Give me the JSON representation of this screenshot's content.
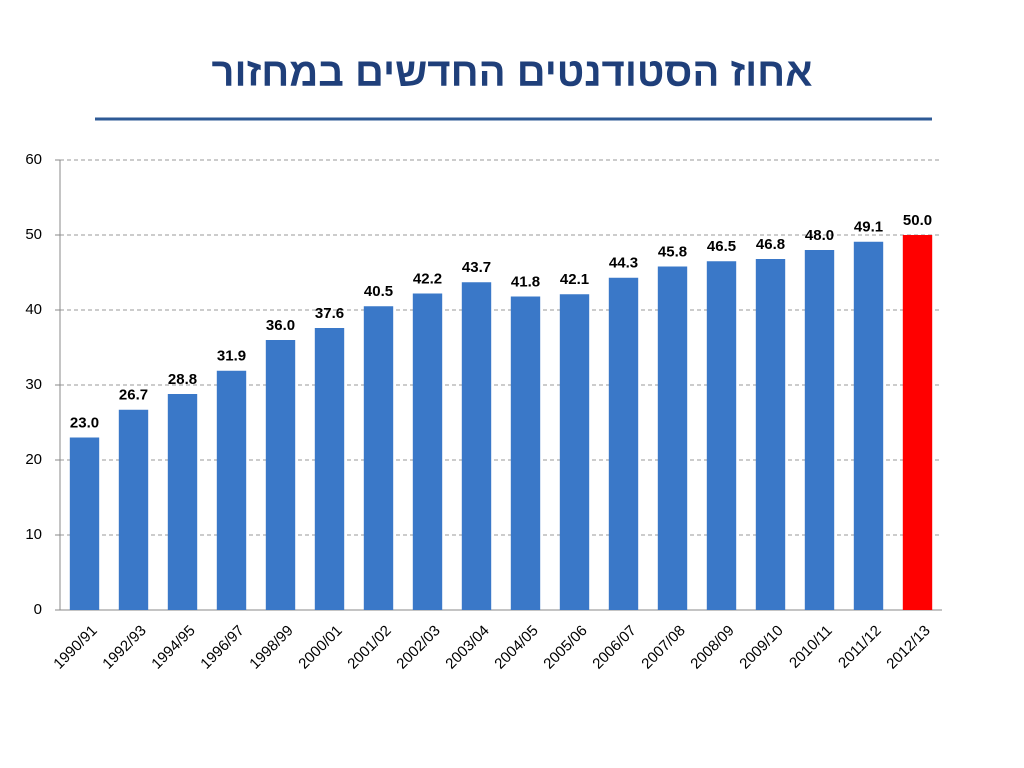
{
  "chart_data": {
    "type": "bar",
    "title": "אחוז הסטודנטים החדשים במחזור",
    "categories": [
      "1990/91",
      "1992/93",
      "1994/95",
      "1996/97",
      "1998/99",
      "2000/01",
      "2001/02",
      "2002/03",
      "2003/04",
      "2004/05",
      "2005/06",
      "2006/07",
      "2007/08",
      "2008/09",
      "2009/10",
      "2010/11",
      "2011/12",
      "2012/13"
    ],
    "values": [
      23.0,
      26.7,
      28.8,
      31.9,
      36.0,
      37.6,
      40.5,
      42.2,
      43.7,
      41.8,
      42.1,
      44.3,
      45.8,
      46.5,
      46.8,
      48.0,
      49.1,
      50.0
    ],
    "value_labels": [
      "23.0",
      "26.7",
      "28.8",
      "31.9",
      "36.0",
      "37.6",
      "40.5",
      "42.2",
      "43.7",
      "41.8",
      "42.1",
      "44.3",
      "45.8",
      "46.5",
      "46.8",
      "48.0",
      "49.1",
      "50.0"
    ],
    "colors": [
      "#3a78c8",
      "#3a78c8",
      "#3a78c8",
      "#3a78c8",
      "#3a78c8",
      "#3a78c8",
      "#3a78c8",
      "#3a78c8",
      "#3a78c8",
      "#3a78c8",
      "#3a78c8",
      "#3a78c8",
      "#3a78c8",
      "#3a78c8",
      "#3a78c8",
      "#3a78c8",
      "#3a78c8",
      "#ff0000"
    ],
    "ylim": [
      0,
      60
    ],
    "yticks": [
      0,
      10,
      20,
      30,
      40,
      50,
      60
    ],
    "grid": true
  }
}
